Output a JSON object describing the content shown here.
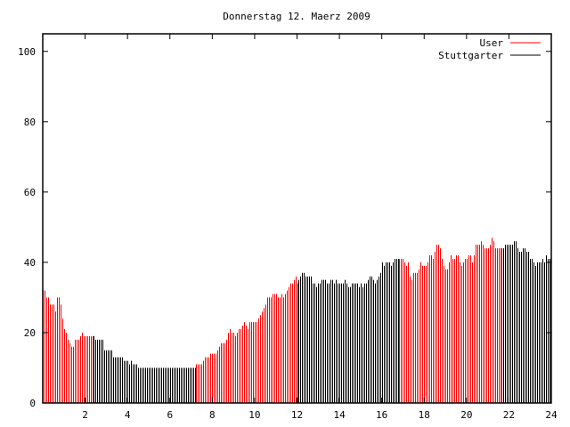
{
  "chart_data": {
    "type": "bar",
    "style": "impulses",
    "title": "Donnerstag 12. Maerz 2009",
    "xlabel": "",
    "ylabel": "",
    "xlim": [
      0,
      24
    ],
    "ylim": [
      0,
      105
    ],
    "xticks": [
      2,
      4,
      6,
      8,
      10,
      12,
      14,
      16,
      18,
      20,
      22,
      24
    ],
    "yticks": [
      0,
      20,
      40,
      60,
      80,
      100
    ],
    "grid": false,
    "legend_position": "top-right",
    "series": [
      {
        "name": "User",
        "color": "#ff0000",
        "ranges": [
          [
            0,
            2.4
          ],
          [
            7.2,
            12.0
          ],
          [
            16.8,
            21.7
          ]
        ]
      },
      {
        "name": "Stuttgarter",
        "color": "#000000",
        "ranges": [
          [
            2.4,
            7.2
          ],
          [
            12.0,
            16.8
          ],
          [
            21.7,
            24
          ]
        ]
      }
    ],
    "x_step_hours": 0.0833,
    "values": [
      32,
      32,
      30,
      30,
      28,
      28,
      28,
      26,
      30,
      30,
      28,
      24,
      21,
      20,
      18,
      17,
      16,
      16,
      18,
      18,
      18,
      19,
      20,
      19,
      19,
      19,
      19,
      19,
      19,
      19,
      18,
      18,
      18,
      18,
      18,
      15,
      15,
      15,
      15,
      15,
      13,
      13,
      13,
      13,
      13,
      13,
      12,
      12,
      12,
      11,
      12,
      11,
      11,
      11,
      10,
      10,
      10,
      10,
      10,
      10,
      10,
      10,
      10,
      10,
      10,
      10,
      10,
      10,
      10,
      10,
      10,
      10,
      10,
      10,
      10,
      10,
      10,
      10,
      10,
      10,
      10,
      10,
      10,
      10,
      10,
      10,
      10,
      11,
      11,
      11,
      11,
      12,
      13,
      13,
      13,
      14,
      14,
      14,
      14,
      15,
      16,
      17,
      17,
      17,
      18,
      20,
      21,
      20,
      20,
      19,
      20,
      21,
      21,
      22,
      23,
      22,
      21,
      23,
      23,
      23,
      23,
      23,
      24,
      25,
      26,
      27,
      28,
      30,
      30,
      30,
      31,
      31,
      31,
      30,
      30,
      31,
      30,
      31,
      32,
      33,
      34,
      34,
      35,
      36,
      34,
      35,
      36,
      37,
      37,
      36,
      36,
      36,
      36,
      34,
      34,
      33,
      34,
      34,
      35,
      35,
      35,
      34,
      34,
      35,
      35,
      34,
      35,
      34,
      34,
      34,
      34,
      35,
      34,
      33,
      33,
      34,
      34,
      34,
      34,
      33,
      34,
      33,
      34,
      34,
      35,
      36,
      36,
      35,
      34,
      35,
      36,
      37,
      40,
      39,
      40,
      40,
      40,
      39,
      40,
      41,
      41,
      41,
      41,
      41,
      41,
      40,
      39,
      40,
      36,
      35,
      37,
      37,
      37,
      38,
      40,
      39,
      39,
      39,
      40,
      42,
      42,
      41,
      43,
      45,
      45,
      44,
      41,
      39,
      38,
      38,
      40,
      42,
      41,
      41,
      42,
      42,
      40,
      39,
      40,
      41,
      41,
      42,
      42,
      40,
      42,
      45,
      45,
      45,
      46,
      45,
      44,
      44,
      44,
      45,
      47,
      46,
      44,
      44,
      44,
      44,
      44,
      44,
      45,
      45,
      45,
      45,
      45,
      46,
      46,
      44,
      43,
      43,
      44,
      44,
      43,
      43,
      41,
      41,
      40,
      39,
      40,
      40,
      40,
      41,
      40,
      42,
      41,
      41
    ]
  }
}
